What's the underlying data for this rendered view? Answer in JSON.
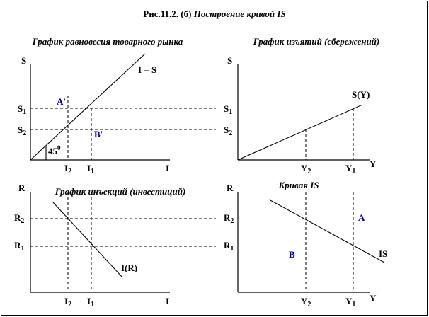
{
  "figure": {
    "title_prefix": "Рис.11.2. (б) ",
    "title_italic": "Построение кривой IS"
  },
  "panels": {
    "goods_market": {
      "title": "График равновесия товарного рынка",
      "y_axis": "S",
      "curve": "I = S",
      "angle": "45",
      "angle_sup": "0",
      "point_a": "A'",
      "point_b": "B'",
      "s1": {
        "base": "S",
        "sub": "1"
      },
      "s2": {
        "base": "S",
        "sub": "2"
      },
      "i2": {
        "base": "I",
        "sub": "2"
      },
      "i1": {
        "base": "I",
        "sub": "1"
      },
      "x_axis": "I"
    },
    "savings": {
      "title": "График изъятий (сбережений)",
      "y_axis": "S",
      "curve": "S(Y)",
      "s1": {
        "base": "S",
        "sub": "1"
      },
      "s2": {
        "base": "S",
        "sub": "2"
      },
      "y2": {
        "base": "Y",
        "sub": "2"
      },
      "y1": {
        "base": "Y",
        "sub": "1"
      },
      "x_axis": "Y"
    },
    "investment": {
      "title": "График инъекций (инвестиций)",
      "y_axis": "R",
      "curve": "I(R)",
      "r2": {
        "base": "R",
        "sub": "2"
      },
      "r1": {
        "base": "R",
        "sub": "1"
      },
      "i2": {
        "base": "I",
        "sub": "2"
      },
      "i1": {
        "base": "I",
        "sub": "1"
      },
      "x_axis": "I"
    },
    "is_curve": {
      "title": "Кривая IS",
      "y_axis": "R",
      "curve": "IS",
      "point_a": "A",
      "point_b": "B",
      "r2": {
        "base": "R",
        "sub": "2"
      },
      "r1": {
        "base": "R",
        "sub": "1"
      },
      "y2": {
        "base": "Y",
        "sub": "2"
      },
      "y1": {
        "base": "Y",
        "sub": "1"
      },
      "x_axis": "Y"
    }
  }
}
